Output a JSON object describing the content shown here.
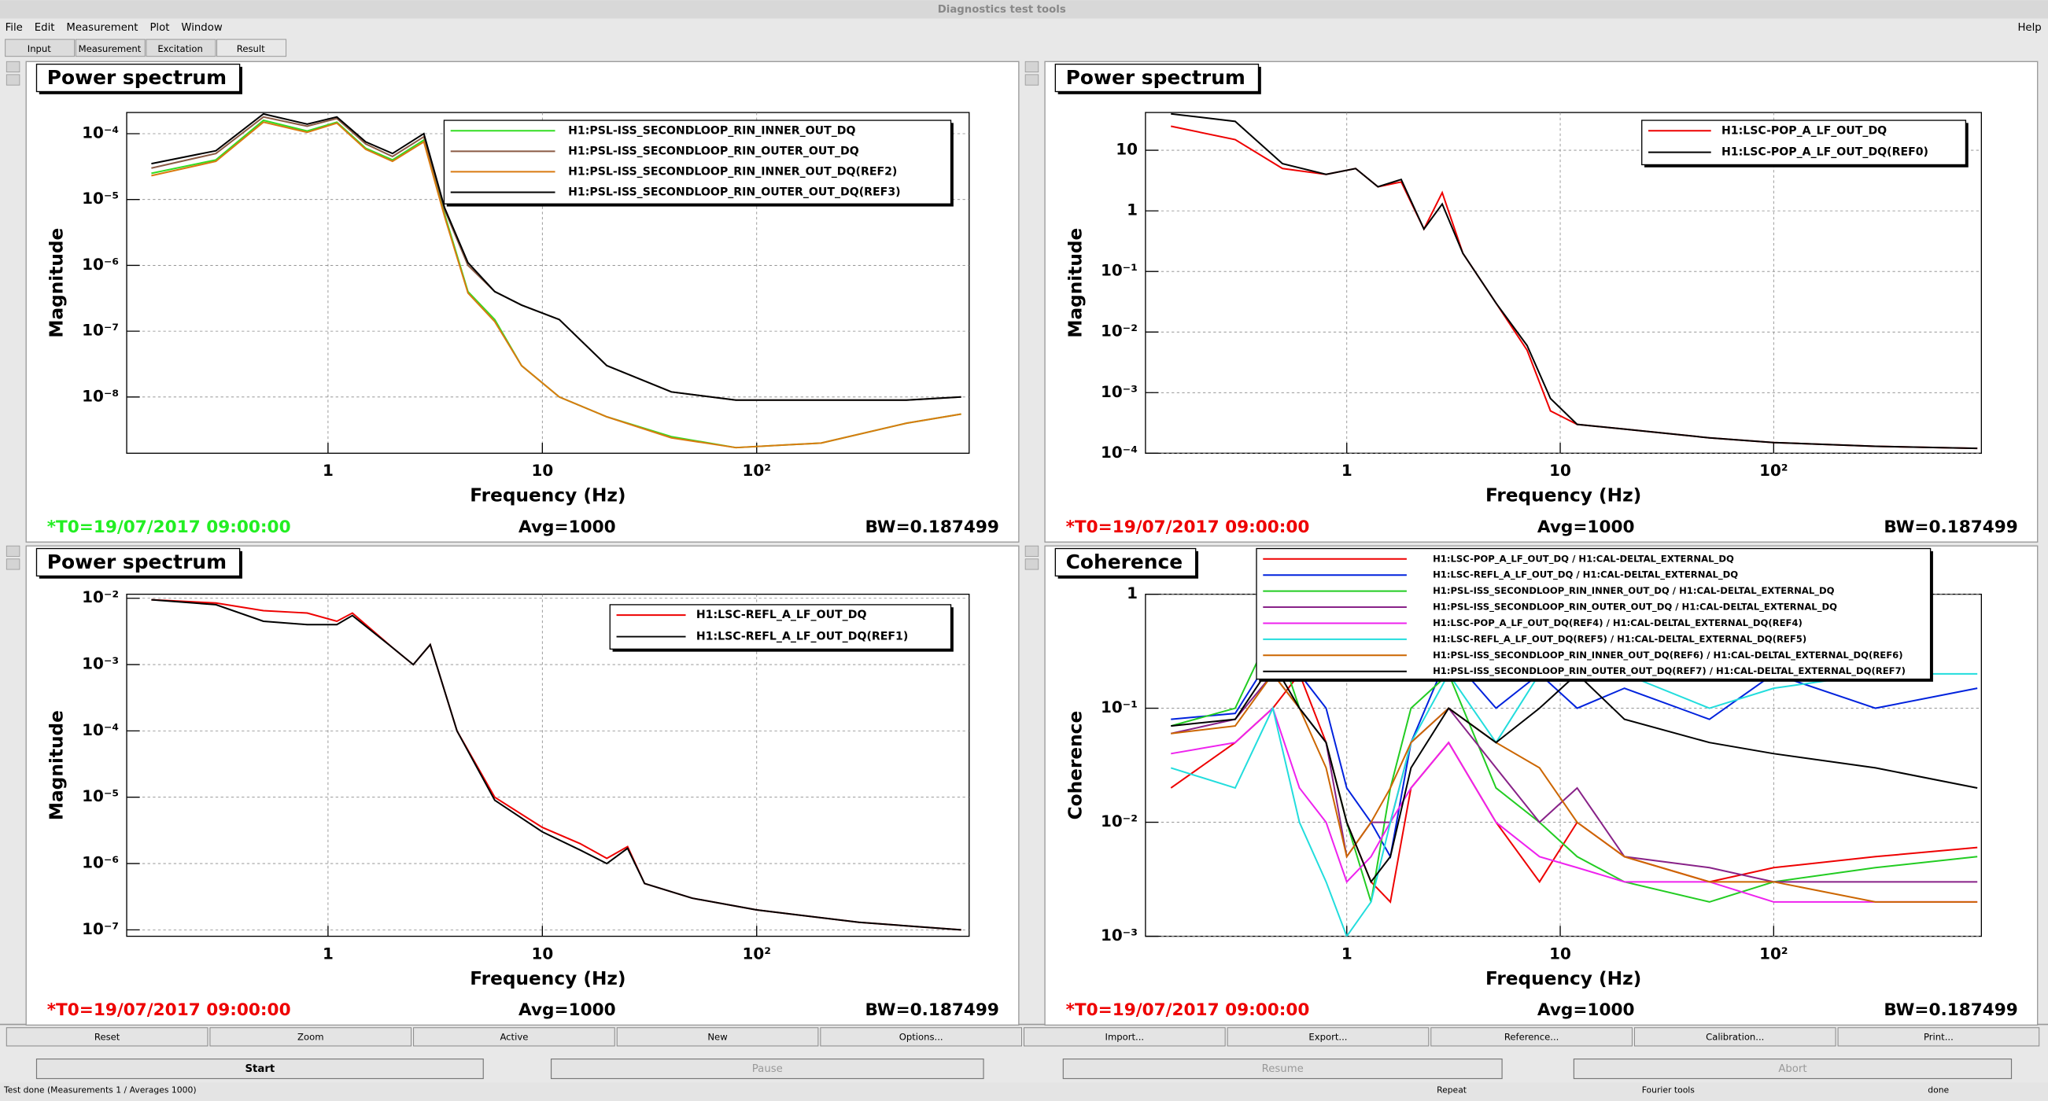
{
  "window": {
    "title": "Diagnostics test tools",
    "menu": [
      "File",
      "Edit",
      "Measurement",
      "Plot",
      "Window"
    ],
    "help": "Help"
  },
  "tabs": [
    "Input",
    "Measurement",
    "Excitation",
    "Result"
  ],
  "toolbar": [
    "Reset",
    "Zoom",
    "Active",
    "New",
    "Options...",
    "Import...",
    "Export...",
    "Reference...",
    "Calibration...",
    "Print..."
  ],
  "controls": [
    "Start",
    "Pause",
    "Resume",
    "Abort"
  ],
  "status": [
    "Test done (Measurements 1 / Averages 1000)",
    "Repeat",
    "Fourier tools",
    "done"
  ],
  "chart_data": [
    {
      "type": "line",
      "title": "Power spectrum",
      "xlabel": "Frequency (Hz)",
      "ylabel": "Magnitude",
      "log_x": true,
      "log_y": true,
      "grid": true,
      "xlim": [
        0.115,
        980
      ],
      "ylim": [
        1.4e-09,
        0.00021
      ],
      "xticks": [
        1,
        10,
        {
          "value": 100,
          "label": "10²"
        }
      ],
      "yticks": [
        {
          "value": 1e-08,
          "label": "10⁻⁸"
        },
        {
          "value": 1e-07,
          "label": "10⁻⁷"
        },
        {
          "value": 1e-06,
          "label": "10⁻⁶"
        },
        {
          "value": 1e-05,
          "label": "10⁻⁵"
        },
        {
          "value": 0.0001,
          "label": "10⁻⁴"
        }
      ],
      "x": [
        0.15,
        0.3,
        0.5,
        0.8,
        1.1,
        1.5,
        2,
        2.8,
        3.5,
        4.5,
        6,
        8,
        12,
        20,
        40,
        80,
        200,
        500,
        900
      ],
      "series": [
        {
          "name": "H1:PSL-ISS_SECONDLOOP_RIN_INNER_OUT_DQ",
          "color": "#33dd22",
          "values": [
            2.5e-05,
            4e-05,
            0.00016,
            0.00011,
            0.00015,
            6e-05,
            4e-05,
            8e-05,
            6e-06,
            4e-07,
            1.5e-07,
            3e-08,
            1e-08,
            5e-09,
            2.5e-09,
            1.7e-09,
            2e-09,
            4e-09,
            5.5e-09
          ]
        },
        {
          "name": "H1:PSL-ISS_SECONDLOOP_RIN_OUTER_OUT_DQ",
          "color": "#8a5a44",
          "values": [
            3e-05,
            5e-05,
            0.00018,
            0.00013,
            0.00017,
            7e-05,
            4.5e-05,
            9e-05,
            7e-06,
            1e-06,
            4e-07,
            2.5e-07,
            1.5e-07,
            3e-08,
            1.2e-08,
            9e-09,
            9e-09,
            9e-09,
            1e-08
          ]
        },
        {
          "name": "H1:PSL-ISS_SECONDLOOP_RIN_INNER_OUT_DQ(REF2)",
          "color": "#d97a10",
          "values": [
            2.3e-05,
            3.8e-05,
            0.00015,
            0.000105,
            0.000145,
            5.8e-05,
            3.8e-05,
            7.5e-05,
            5.5e-06,
            3.8e-07,
            1.4e-07,
            3e-08,
            1e-08,
            5e-09,
            2.4e-09,
            1.7e-09,
            2e-09,
            4e-09,
            5.5e-09
          ]
        },
        {
          "name": "H1:PSL-ISS_SECONDLOOP_RIN_OUTER_OUT_DQ(REF3)",
          "color": "#000000",
          "values": [
            3.5e-05,
            5.5e-05,
            0.0002,
            0.00014,
            0.00018,
            7.5e-05,
            5e-05,
            0.0001,
            7.5e-06,
            1.1e-06,
            4e-07,
            2.5e-07,
            1.5e-07,
            3e-08,
            1.2e-08,
            9e-09,
            9e-09,
            9e-09,
            1e-08
          ]
        }
      ],
      "t0": "*T0=19/07/2017 09:00:00",
      "t0_color": "#22ee22",
      "avg": "Avg=1000",
      "bw": "BW=0.187499"
    },
    {
      "type": "line",
      "title": "Power spectrum",
      "xlabel": "Frequency (Hz)",
      "ylabel": "Magnitude",
      "log_x": true,
      "log_y": true,
      "grid": true,
      "xlim": [
        0.114,
        940
      ],
      "ylim": [
        0.0001,
        42
      ],
      "xticks": [
        1,
        10,
        {
          "value": 100,
          "label": "10²"
        }
      ],
      "yticks": [
        {
          "value": 0.0001,
          "label": "10⁻⁴"
        },
        {
          "value": 0.001,
          "label": "10⁻³"
        },
        {
          "value": 0.01,
          "label": "10⁻²"
        },
        {
          "value": 0.1,
          "label": "10⁻¹"
        },
        1,
        10
      ],
      "x": [
        0.15,
        0.3,
        0.5,
        0.8,
        1.1,
        1.4,
        1.8,
        2.3,
        2.8,
        3.5,
        5,
        7,
        9,
        12,
        20,
        50,
        100,
        300,
        900
      ],
      "series": [
        {
          "name": "H1:LSC-POP_A_LF_OUT_DQ",
          "color": "#ee0000",
          "values": [
            25,
            15,
            5,
            4,
            5,
            2.5,
            3,
            0.5,
            2,
            0.2,
            0.03,
            0.005,
            0.0005,
            0.0003,
            0.00025,
            0.00018,
            0.00015,
            0.00013,
            0.00012
          ]
        },
        {
          "name": "H1:LSC-POP_A_LF_OUT_DQ(REF0)",
          "color": "#000000",
          "values": [
            40,
            30,
            6,
            4,
            5,
            2.5,
            3.3,
            0.5,
            1.3,
            0.2,
            0.03,
            0.006,
            0.0008,
            0.0003,
            0.00025,
            0.00018,
            0.00015,
            0.00013,
            0.00012
          ]
        }
      ],
      "t0": "*T0=19/07/2017 09:00:00",
      "t0_color": "#ee0000",
      "avg": "Avg=1000",
      "bw": "BW=0.187499"
    },
    {
      "type": "line",
      "title": "Power spectrum",
      "xlabel": "Frequency (Hz)",
      "ylabel": "Magnitude",
      "log_x": true,
      "log_y": true,
      "grid": true,
      "xlim": [
        0.115,
        980
      ],
      "ylim": [
        8e-08,
        0.0115
      ],
      "xticks": [
        1,
        10,
        {
          "value": 100,
          "label": "10²"
        }
      ],
      "yticks": [
        {
          "value": 1e-07,
          "label": "10⁻⁷"
        },
        {
          "value": 1e-06,
          "label": "10⁻⁶"
        },
        {
          "value": 1e-05,
          "label": "10⁻⁵"
        },
        {
          "value": 0.0001,
          "label": "10⁻⁴"
        },
        {
          "value": 0.001,
          "label": "10⁻³"
        },
        {
          "value": 0.01,
          "label": "10⁻²"
        }
      ],
      "x": [
        0.15,
        0.3,
        0.5,
        0.8,
        1.1,
        1.3,
        2,
        2.5,
        3,
        4,
        6,
        10,
        15,
        20,
        25,
        30,
        50,
        100,
        300,
        900
      ],
      "series": [
        {
          "name": "H1:LSC-REFL_A_LF_OUT_DQ",
          "color": "#ee0000",
          "values": [
            0.0095,
            0.0085,
            0.0065,
            0.006,
            0.0045,
            0.006,
            0.0018,
            0.001,
            0.002,
            0.0001,
            1e-05,
            3.5e-06,
            2e-06,
            1.2e-06,
            1.8e-06,
            5e-07,
            3e-07,
            2e-07,
            1.3e-07,
            1e-07
          ]
        },
        {
          "name": "H1:LSC-REFL_A_LF_OUT_DQ(REF1)",
          "color": "#000000",
          "values": [
            0.0095,
            0.008,
            0.0045,
            0.004,
            0.004,
            0.0055,
            0.0018,
            0.001,
            0.002,
            0.0001,
            9e-06,
            3e-06,
            1.6e-06,
            1e-06,
            1.7e-06,
            5e-07,
            3e-07,
            2e-07,
            1.3e-07,
            1e-07
          ]
        }
      ],
      "t0": "*T0=19/07/2017 09:00:00",
      "t0_color": "#ee0000",
      "avg": "Avg=1000",
      "bw": "BW=0.187499"
    },
    {
      "type": "line",
      "title": "Coherence",
      "xlabel": "Frequency (Hz)",
      "ylabel": "Coherence",
      "log_x": true,
      "log_y": true,
      "grid": true,
      "xlim": [
        0.114,
        940
      ],
      "ylim": [
        0.001,
        1
      ],
      "xticks": [
        1,
        10,
        {
          "value": 100,
          "label": "10²"
        }
      ],
      "yticks": [
        {
          "value": 0.001,
          "label": "10⁻³"
        },
        {
          "value": 0.01,
          "label": "10⁻²"
        },
        {
          "value": 0.1,
          "label": "10⁻¹"
        },
        1
      ],
      "x": [
        0.15,
        0.3,
        0.45,
        0.6,
        0.8,
        1,
        1.3,
        1.6,
        2,
        3,
        5,
        8,
        12,
        20,
        50,
        100,
        300,
        900
      ],
      "series": [
        {
          "name": "H1:LSC-POP_A_LF_OUT_DQ / H1:CAL-DELTAL_EXTERNAL_DQ",
          "color": "#ee0000",
          "values": [
            0.02,
            0.05,
            0.1,
            0.2,
            0.05,
            0.01,
            0.003,
            0.002,
            0.02,
            0.05,
            0.01,
            0.003,
            0.01,
            0.005,
            0.003,
            0.004,
            0.005,
            0.006
          ]
        },
        {
          "name": "H1:LSC-REFL_A_LF_OUT_DQ / H1:CAL-DELTAL_EXTERNAL_DQ",
          "color": "#0022dd",
          "values": [
            0.08,
            0.09,
            0.3,
            0.2,
            0.1,
            0.02,
            0.01,
            0.005,
            0.05,
            0.3,
            0.1,
            0.2,
            0.1,
            0.15,
            0.08,
            0.2,
            0.1,
            0.15
          ]
        },
        {
          "name": "H1:PSL-ISS_SECONDLOOP_RIN_INNER_OUT_DQ / H1:CAL-DELTAL_EXTERNAL_DQ",
          "color": "#22cc22",
          "values": [
            0.07,
            0.1,
            0.5,
            0.1,
            0.05,
            0.01,
            0.002,
            0.02,
            0.1,
            0.2,
            0.02,
            0.01,
            0.005,
            0.003,
            0.002,
            0.003,
            0.004,
            0.005
          ]
        },
        {
          "name": "H1:PSL-ISS_SECONDLOOP_RIN_OUTER_OUT_DQ / H1:CAL-DELTAL_EXTERNAL_DQ",
          "color": "#882288",
          "values": [
            0.06,
            0.08,
            0.2,
            0.1,
            0.05,
            0.005,
            0.01,
            0.01,
            0.05,
            0.1,
            0.03,
            0.01,
            0.02,
            0.005,
            0.004,
            0.003,
            0.003,
            0.003
          ]
        },
        {
          "name": "H1:LSC-POP_A_LF_OUT_DQ(REF4) / H1:CAL-DELTAL_EXTERNAL_DQ(REF4)",
          "color": "#ee22ee",
          "values": [
            0.04,
            0.05,
            0.1,
            0.02,
            0.01,
            0.003,
            0.005,
            0.01,
            0.02,
            0.05,
            0.01,
            0.005,
            0.004,
            0.003,
            0.003,
            0.002,
            0.002,
            0.002
          ]
        },
        {
          "name": "H1:LSC-REFL_A_LF_OUT_DQ(REF5) / H1:CAL-DELTAL_EXTERNAL_DQ(REF5)",
          "color": "#22dddd",
          "values": [
            0.03,
            0.02,
            0.1,
            0.01,
            0.003,
            0.001,
            0.002,
            0.01,
            0.05,
            0.2,
            0.05,
            0.2,
            0.3,
            0.2,
            0.1,
            0.15,
            0.2,
            0.2
          ]
        },
        {
          "name": "H1:PSL-ISS_SECONDLOOP_RIN_INNER_OUT_DQ(REF6) / H1:CAL-DELTAL_EXTERNAL_DQ(REF6)",
          "color": "#cc6600",
          "values": [
            0.06,
            0.07,
            0.2,
            0.1,
            0.03,
            0.005,
            0.01,
            0.02,
            0.05,
            0.1,
            0.05,
            0.03,
            0.01,
            0.005,
            0.003,
            0.003,
            0.002,
            0.002
          ]
        },
        {
          "name": "H1:PSL-ISS_SECONDLOOP_RIN_OUTER_OUT_DQ(REF7) / H1:CAL-DELTAL_EXTERNAL_DQ(REF7)",
          "color": "#000000",
          "values": [
            0.07,
            0.08,
            0.25,
            0.1,
            0.05,
            0.01,
            0.003,
            0.005,
            0.03,
            0.1,
            0.05,
            0.1,
            0.2,
            0.08,
            0.05,
            0.04,
            0.03,
            0.02
          ]
        }
      ],
      "t0": "*T0=19/07/2017 09:00:00",
      "t0_color": "#ee0000",
      "avg": "Avg=1000",
      "bw": "BW=0.187499"
    }
  ]
}
